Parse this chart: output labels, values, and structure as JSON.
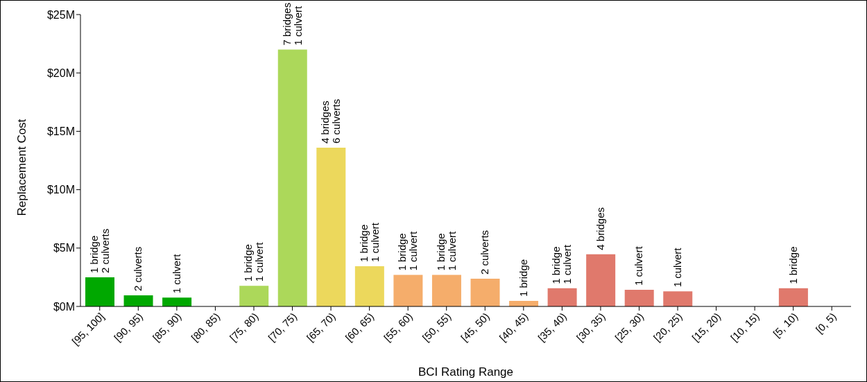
{
  "chart_data": {
    "type": "bar",
    "xlabel": "BCI Rating Range",
    "ylabel": "Replacement Cost",
    "categories": [
      "[95, 100]",
      "[90, 95)",
      "[85, 90)",
      "[80, 85)",
      "[75, 80)",
      "[70, 75)",
      "[65, 70)",
      "[60, 65)",
      "[55, 60)",
      "[50, 55)",
      "[45, 50)",
      "[40, 45)",
      "[35, 40)",
      "[30, 35)",
      "[25, 30)",
      "[20, 25)",
      "[15, 20)",
      "[10, 15)",
      "[5, 10)",
      "[0, 5)"
    ],
    "values": [
      2.5,
      0.95,
      0.75,
      0,
      1.76,
      22,
      13.6,
      3.45,
      2.7,
      2.7,
      2.37,
      0.47,
      1.56,
      4.47,
      1.42,
      1.29,
      0,
      0,
      1.56,
      0
    ],
    "colors": [
      "#00a800",
      "#00a800",
      "#00a800",
      "#00a800",
      "#acd85a",
      "#acd85a",
      "#ecd85c",
      "#ecd85c",
      "#f5ad6b",
      "#f5ad6b",
      "#f5ad6b",
      "#f5ad6b",
      "#e0796c",
      "#e0796c",
      "#e0796c",
      "#e0796c",
      "#e0796c",
      "#e0796c",
      "#e0796c",
      "#e0796c"
    ],
    "annotations": [
      {
        "text": "1 bridge\n2 culverts",
        "x": "[95, 100]",
        "y": 2.5
      },
      {
        "text": "2 culverts",
        "x": "[90, 95)",
        "y": 0.95
      },
      {
        "text": "1 culvert",
        "x": "[85, 90)",
        "y": 0.75
      },
      {
        "text": "1 bridge\n1 culvert",
        "x": "[75, 80)",
        "y": 1.76
      },
      {
        "text": "7 bridges\n1 culvert",
        "x": "[70, 75)",
        "y": 22
      },
      {
        "text": "4 bridges\n6 culverts",
        "x": "[65, 70)",
        "y": 13.6
      },
      {
        "text": "1 bridge\n1 culvert",
        "x": "[60, 65)",
        "y": 3.45
      },
      {
        "text": "1 bridge\n1 culvert",
        "x": "[55, 60)",
        "y": 2.7
      },
      {
        "text": "1 bridge\n1 culvert",
        "x": "[50, 55)",
        "y": 2.7
      },
      {
        "text": "2 culverts",
        "x": "[45, 50)",
        "y": 2.37
      },
      {
        "text": "1 bridge",
        "x": "[40, 45)",
        "y": 0.47
      },
      {
        "text": "1 bridge\n1 culvert",
        "x": "[35, 40)",
        "y": 1.56
      },
      {
        "text": "4 bridges",
        "x": "[30, 35)",
        "y": 4.47
      },
      {
        "text": "1 culvert",
        "x": "[25, 30)",
        "y": 1.42
      },
      {
        "text": "1 culvert",
        "x": "[20, 25)",
        "y": 1.29
      },
      {
        "text": "1 bridge",
        "x": "[5, 10)",
        "y": 1.56
      }
    ],
    "ylim": [
      0,
      25
    ],
    "yticks": [
      {
        "value": 0,
        "label": "$0M"
      },
      {
        "value": 5,
        "label": "$5M"
      },
      {
        "value": 10,
        "label": "$10M"
      },
      {
        "value": 15,
        "label": "$15M"
      },
      {
        "value": 20,
        "label": "$20M"
      },
      {
        "value": 25,
        "label": "$25M"
      }
    ],
    "grid": false,
    "legend": false
  }
}
